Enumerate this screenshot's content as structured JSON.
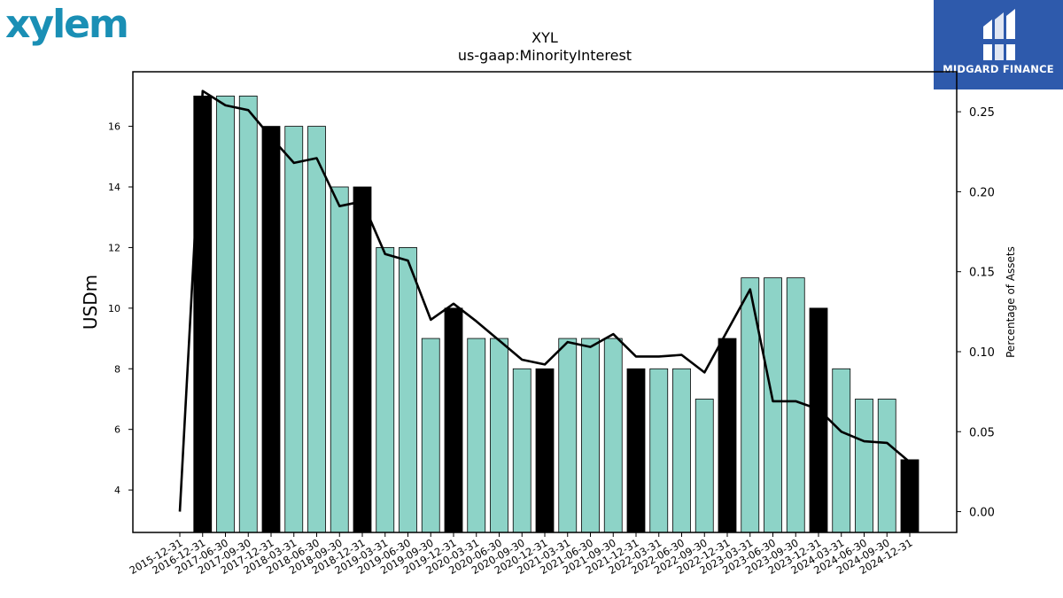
{
  "logos": {
    "left": "xylem",
    "right": "MIDGARD FINANCE"
  },
  "chart_data": {
    "type": "bar",
    "title": "XYL",
    "subtitle": "us-gaap:MinorityInterest",
    "ylabel": "USDm",
    "y2label": "Percentage of Assets",
    "ylim": [
      2.6,
      17.8
    ],
    "y2lim": [
      -0.013,
      0.275
    ],
    "yticks": [
      4,
      6,
      8,
      10,
      12,
      14,
      16
    ],
    "y2ticks": [
      "0.00",
      "0.05",
      "0.10",
      "0.15",
      "0.20",
      "0.25"
    ],
    "grid": false,
    "colors": {
      "bar": "#8dd3c7",
      "bar_highlight": "#000000",
      "line": "#000000"
    },
    "categories": [
      "2015-12-31",
      "2016-12-31",
      "2017-06-30",
      "2017-09-30",
      "2017-12-31",
      "2018-03-31",
      "2018-06-30",
      "2018-09-30",
      "2018-12-31",
      "2019-03-31",
      "2019-06-30",
      "2019-09-30",
      "2019-12-31",
      "2020-03-31",
      "2020-06-30",
      "2020-09-30",
      "2020-12-31",
      "2021-03-31",
      "2021-06-30",
      "2021-09-30",
      "2021-12-31",
      "2022-03-31",
      "2022-06-30",
      "2022-09-30",
      "2022-12-31",
      "2023-03-31",
      "2023-06-30",
      "2023-09-30",
      "2023-12-31",
      "2024-03-31",
      "2024-06-30",
      "2024-09-30",
      "2024-12-31"
    ],
    "series": [
      {
        "type": "bar",
        "values": [
          null,
          17,
          17,
          17,
          16,
          16,
          16,
          14,
          14,
          12,
          12,
          9,
          10,
          9,
          9,
          8,
          8,
          9,
          9,
          9,
          8,
          8,
          8,
          7,
          9,
          11,
          11,
          11,
          10,
          8,
          7,
          7,
          5
        ],
        "highlight": [
          false,
          true,
          false,
          false,
          true,
          false,
          false,
          false,
          true,
          false,
          false,
          false,
          true,
          false,
          false,
          false,
          true,
          false,
          false,
          false,
          true,
          false,
          false,
          false,
          true,
          false,
          false,
          false,
          true,
          false,
          false,
          false,
          true
        ]
      },
      {
        "type": "line",
        "axis": "right",
        "values": [
          0.0,
          0.263,
          0.254,
          0.251,
          0.234,
          0.218,
          0.221,
          0.191,
          0.194,
          0.161,
          0.157,
          0.12,
          0.13,
          0.119,
          0.107,
          0.095,
          0.092,
          0.106,
          0.103,
          0.111,
          0.097,
          0.097,
          0.098,
          0.087,
          0.113,
          0.139,
          0.069,
          0.069,
          0.064,
          0.05,
          0.044,
          0.043,
          0.031
        ]
      }
    ]
  }
}
